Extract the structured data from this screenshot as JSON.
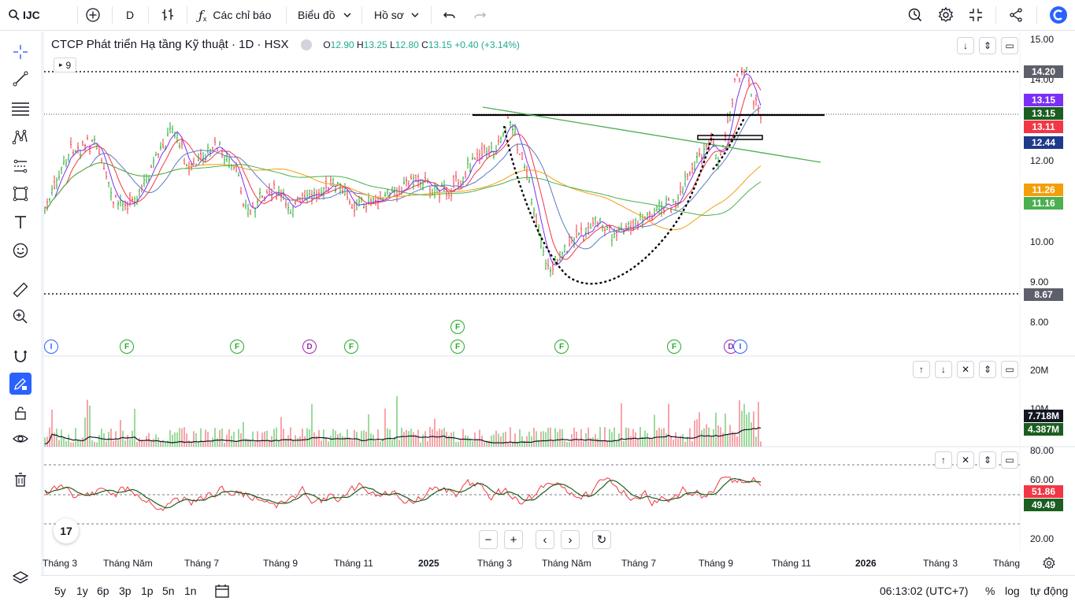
{
  "toolbar": {
    "symbol": "IJC",
    "interval": "D",
    "indicators": "Các chỉ báo",
    "chart_type": "Biểu đồ",
    "profile": "Hồ sơ"
  },
  "legend": {
    "title": "CTCP Phát triển Hạ tầng Kỹ thuật · 1D · HSX",
    "o_label": "O",
    "o": "12.90",
    "h_label": "H",
    "h": "13.25",
    "l_label": "L",
    "l": "12.80",
    "c_label": "C",
    "c": "13.15",
    "change": "+0.40 (+3.14%)",
    "badge": "9"
  },
  "price_axis": {
    "ticks": [
      "15.00",
      "14.00",
      "12.00",
      "10.00",
      "9.00",
      "8.00"
    ],
    "labels": [
      {
        "text": "14.20",
        "color": "#5d606b"
      },
      {
        "text": "13.15",
        "color": "#7b2ff7"
      },
      {
        "text": "13.15",
        "color": "#1b5e20"
      },
      {
        "text": "13.11",
        "color": "#f23645"
      },
      {
        "text": "12.44",
        "color": "#1e3a8a"
      },
      {
        "text": "11.26",
        "color": "#f59e0b"
      },
      {
        "text": "11.16",
        "color": "#4caf50"
      },
      {
        "text": "8.67",
        "color": "#5d606b"
      }
    ]
  },
  "volume_axis": {
    "ticks": [
      "20M",
      "10M"
    ],
    "labels": [
      {
        "text": "7.718M",
        "color": "#131722"
      },
      {
        "text": "4.387M",
        "color": "#1b5e20"
      }
    ]
  },
  "rsi_axis": {
    "ticks": [
      "80.00",
      "60.00",
      "20.00"
    ],
    "labels": [
      {
        "text": "51.86",
        "color": "#f23645"
      },
      {
        "text": "49.49",
        "color": "#1b5e20"
      }
    ]
  },
  "events": [
    "I",
    "F",
    "F",
    "D",
    "F",
    "F",
    "F",
    "F",
    "F",
    "D",
    "I"
  ],
  "time_axis": [
    "Tháng 3",
    "Tháng Năm",
    "Tháng 7",
    "Tháng 9",
    "Tháng 11",
    "2025",
    "Tháng 3",
    "Tháng Năm",
    "Tháng 7",
    "Tháng 9",
    "Tháng 11",
    "2026",
    "Tháng 3",
    "Tháng"
  ],
  "ranges": [
    "5y",
    "1y",
    "6p",
    "3p",
    "1p",
    "5n",
    "1n"
  ],
  "status": {
    "time": "06:13:02 (UTC+7)",
    "percent": "%",
    "log": "log",
    "auto": "tự động"
  },
  "icons": {
    "search": "search-icon",
    "plus": "plus-circle-icon",
    "bars": "bar-type-icon",
    "fx": "fx-icon",
    "undo": "undo-icon",
    "redo": "redo-icon",
    "alert": "alarm-icon",
    "settings": "gear-icon",
    "fullscreen": "fullscreen-icon",
    "share": "share-icon"
  }
}
